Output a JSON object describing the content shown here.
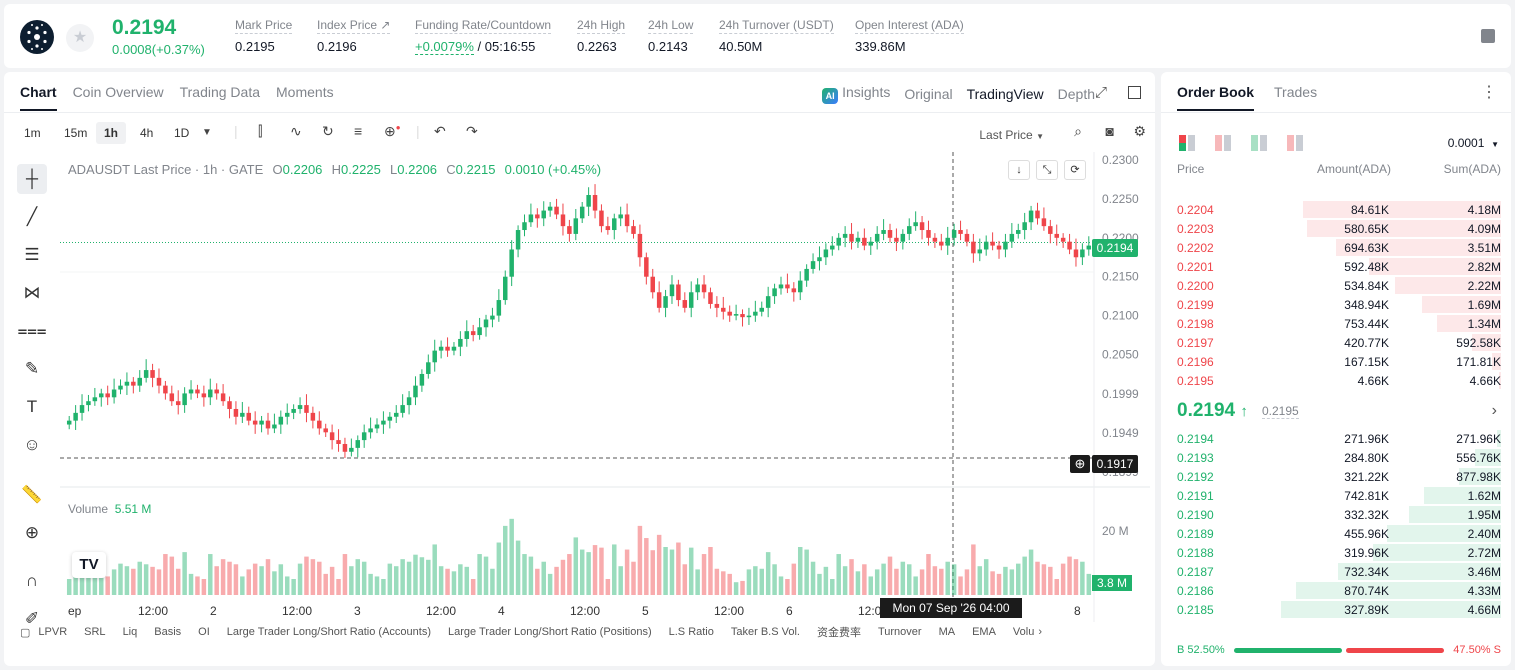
{
  "header": {
    "last_price": "0.2194",
    "change": "0.0008(+0.37%)",
    "stats": [
      {
        "label": "Mark Price",
        "value": "0.2195"
      },
      {
        "label": "Index Price ↗",
        "value": "0.2196"
      },
      {
        "label": "Funding Rate/Countdown",
        "value_green": "+0.0079%",
        "value": "/ 05:16:55"
      },
      {
        "label": "24h High",
        "value": "0.2263"
      },
      {
        "label": "24h Low",
        "value": "0.2143"
      },
      {
        "label": "24h Turnover (USDT)",
        "value": "40.50M"
      },
      {
        "label": "Open Interest (ADA)",
        "value": "339.86M"
      }
    ]
  },
  "chart_tabs": {
    "left": [
      "Chart",
      "Coin Overview",
      "Trading Data",
      "Moments"
    ],
    "right": [
      "Insights",
      "Original",
      "TradingView",
      "Depth"
    ],
    "ai_badge": "AI"
  },
  "intervals": [
    "1m",
    "15m",
    "1h",
    "4h",
    "1D"
  ],
  "active_interval": "1h",
  "price_type": "Last Price",
  "legend": {
    "symbol": "ADAUSDT Last Price · 1h · GATE",
    "o": "0.2206",
    "h": "0.2225",
    "l": "0.2206",
    "c": "0.2215",
    "chg": "0.0010 (+0.45%)"
  },
  "volume_label": "Volume",
  "volume_value": "5.51 M",
  "tv_logo": "TV",
  "crosshair_time": "Mon 07 Sep '26   04:00",
  "price_tag": "0.2194",
  "cross_price": "0.1917",
  "volume_tag": "3.8 M",
  "volume_axis": "20 M",
  "price_axis": [
    "0.2300",
    "0.2250",
    "0.2200",
    "0.2150",
    "0.2100",
    "0.2050",
    "0.1999",
    "0.1949",
    "0.1899"
  ],
  "time_axis": [
    "ep",
    "12:00",
    "2",
    "12:00",
    "3",
    "12:00",
    "4",
    "12:00",
    "5",
    "12:00",
    "6",
    "12:00",
    "7",
    "8"
  ],
  "indicators": [
    "LPVR",
    "SRL",
    "Liq",
    "Basis",
    "OI",
    "Large Trader Long/Short Ratio (Accounts)",
    "Large Trader Long/Short Ratio (Positions)",
    "L.S Ratio",
    "Taker B.S Vol.",
    "资金费率",
    "Turnover",
    "MA",
    "EMA",
    "Volu"
  ],
  "orderbook": {
    "tabs": [
      "Order Book",
      "Trades"
    ],
    "precision": "0.0001",
    "headers": {
      "price": "Price",
      "amount": "Amount(ADA)",
      "sum": "Sum(ADA)"
    },
    "asks": [
      {
        "price": "0.2204",
        "amount": "84.61K",
        "sum": "4.18M",
        "depth": 0.9
      },
      {
        "price": "0.2203",
        "amount": "580.65K",
        "sum": "4.09M",
        "depth": 0.88
      },
      {
        "price": "0.2202",
        "amount": "694.63K",
        "sum": "3.51M",
        "depth": 0.75
      },
      {
        "price": "0.2201",
        "amount": "592.48K",
        "sum": "2.82M",
        "depth": 0.6
      },
      {
        "price": "0.2200",
        "amount": "534.84K",
        "sum": "2.22M",
        "depth": 0.48
      },
      {
        "price": "0.2199",
        "amount": "348.94K",
        "sum": "1.69M",
        "depth": 0.36
      },
      {
        "price": "0.2198",
        "amount": "753.44K",
        "sum": "1.34M",
        "depth": 0.29
      },
      {
        "price": "0.2197",
        "amount": "420.77K",
        "sum": "592.58K",
        "depth": 0.13
      },
      {
        "price": "0.2196",
        "amount": "167.15K",
        "sum": "171.81K",
        "depth": 0.04
      },
      {
        "price": "0.2195",
        "amount": "4.66K",
        "sum": "4.66K",
        "depth": 0.01
      }
    ],
    "mid_price": "0.2194",
    "mid_arrow": "↑",
    "mid_ref": "0.2195",
    "bids": [
      {
        "price": "0.2194",
        "amount": "271.96K",
        "sum": "271.96K",
        "depth": 0.02
      },
      {
        "price": "0.2193",
        "amount": "284.80K",
        "sum": "556.76K",
        "depth": 0.12
      },
      {
        "price": "0.2192",
        "amount": "321.22K",
        "sum": "877.98K",
        "depth": 0.19
      },
      {
        "price": "0.2191",
        "amount": "742.81K",
        "sum": "1.62M",
        "depth": 0.35
      },
      {
        "price": "0.2190",
        "amount": "332.32K",
        "sum": "1.95M",
        "depth": 0.42
      },
      {
        "price": "0.2189",
        "amount": "455.96K",
        "sum": "2.40M",
        "depth": 0.52
      },
      {
        "price": "0.2188",
        "amount": "319.96K",
        "sum": "2.72M",
        "depth": 0.58
      },
      {
        "price": "0.2187",
        "amount": "732.34K",
        "sum": "3.46M",
        "depth": 0.74
      },
      {
        "price": "0.2186",
        "amount": "870.74K",
        "sum": "4.33M",
        "depth": 0.93
      },
      {
        "price": "0.2185",
        "amount": "327.89K",
        "sum": "4.66M",
        "depth": 1.0
      }
    ],
    "buy_ratio": "52.50%",
    "sell_ratio": "47.50%",
    "buy_fraction": 0.525,
    "b_label": "B",
    "s_label": "S"
  },
  "colors": {
    "up": "#20b26c",
    "down": "#ef454a"
  }
}
